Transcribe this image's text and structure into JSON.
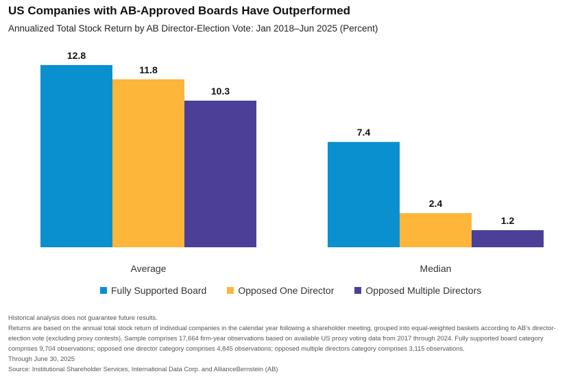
{
  "title": "US Companies with AB-Approved Boards Have Outperformed",
  "subtitle": "Annualized Total Stock Return by AB Director-Election Vote: Jan 2018–Jun 2025 (Percent)",
  "colors": {
    "fully_supported": "#0a90cf",
    "opposed_one": "#fdb53a",
    "opposed_multiple": "#4b3f97"
  },
  "chart_data": {
    "type": "bar",
    "title": "US Companies with AB-Approved Boards Have Outperformed",
    "subtitle": "Annualized Total Stock Return by AB Director-Election Vote: Jan 2018–Jun 2025 (Percent)",
    "categories": [
      "Average",
      "Median"
    ],
    "series": [
      {
        "name": "Fully Supported Board",
        "values": [
          12.8,
          7.4
        ],
        "color": "#0a90cf"
      },
      {
        "name": "Opposed One Director",
        "values": [
          11.8,
          2.4
        ],
        "color": "#fdb53a"
      },
      {
        "name": "Opposed Multiple Directors",
        "values": [
          10.3,
          1.2
        ],
        "color": "#4b3f97"
      }
    ],
    "ylim": [
      0,
      12.8
    ],
    "grid": false,
    "legend_position": "bottom",
    "data_labels": true
  },
  "legend": [
    {
      "label": "Fully Supported Board",
      "color": "#0a90cf"
    },
    {
      "label": "Opposed One Director",
      "color": "#fdb53a"
    },
    {
      "label": "Opposed Multiple Directors",
      "color": "#4b3f97"
    }
  ],
  "notes": {
    "disclaimer": "Historical analysis does not guarantee future results.",
    "methodology": "Returns are based on the annual total stock return of individual companies in the calendar year following a shareholder meeting, grouped into equal-weighted baskets according to AB’s director-election vote (excluding proxy contests). Sample comprises 17,664 firm-year observations based on available US proxy voting data from 2017 through 2024. Fully supported board category comprises 9,704 observations; opposed one director category comprises 4,845 observations; opposed multiple directors category comprises 3,115 observations.",
    "through": "Through June 30, 2025",
    "source": "Source: Institutional Shareholder Services, International Data Corp. and AllianceBernstein (AB)"
  }
}
